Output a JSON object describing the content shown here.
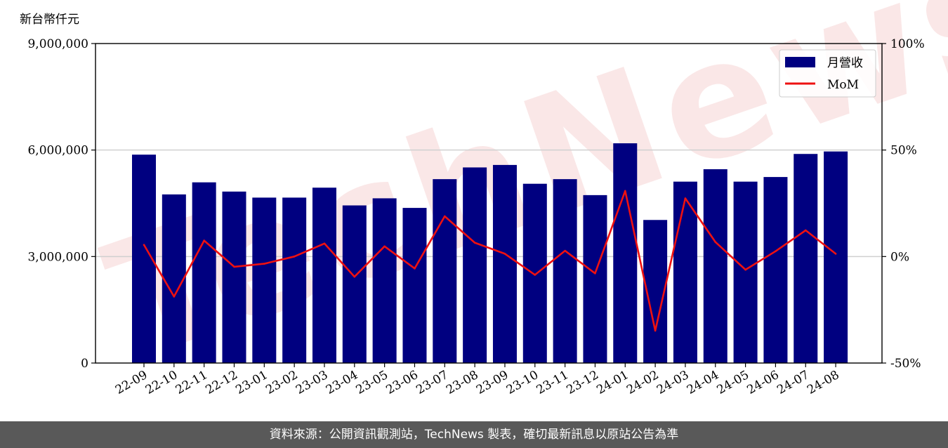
{
  "chart_data": {
    "type": "bar",
    "unit_label": "新台幣仟元",
    "categories": [
      "22-09",
      "22-10",
      "22-11",
      "22-12",
      "23-01",
      "23-02",
      "23-03",
      "23-04",
      "23-05",
      "23-06",
      "23-07",
      "23-08",
      "23-09",
      "23-10",
      "23-11",
      "23-12",
      "24-01",
      "24-02",
      "24-03",
      "24-04",
      "24-05",
      "24-06",
      "24-07",
      "24-08"
    ],
    "series": [
      {
        "name": "月營收",
        "type": "bar",
        "axis": "left",
        "color": "#000080",
        "values": [
          5870000,
          4750000,
          5090000,
          4830000,
          4660000,
          4660000,
          4940000,
          4440000,
          4640000,
          4370000,
          5180000,
          5510000,
          5580000,
          5050000,
          5180000,
          4730000,
          6190000,
          4030000,
          5110000,
          5460000,
          5110000,
          5240000,
          5890000,
          5960000
        ]
      },
      {
        "name": "MoM",
        "type": "line",
        "axis": "right",
        "color": "#ee1111",
        "values": [
          5.5,
          -18.8,
          7.5,
          -4.8,
          -3.4,
          0,
          6.1,
          -9.5,
          4.8,
          -5.6,
          18.9,
          6.5,
          1.3,
          -8.6,
          2.7,
          -7.9,
          30.8,
          -34.8,
          27.3,
          6.8,
          -6.2,
          2.5,
          12.3,
          1.3
        ]
      }
    ],
    "y_left": {
      "ylim": [
        0,
        9000000
      ],
      "ticks": [
        "0",
        "3,000,000",
        "6,000,000",
        "9,000,000"
      ]
    },
    "y_right": {
      "ylim": [
        -50,
        100
      ],
      "ticks": [
        "-50%",
        "0%",
        "50%",
        "100%"
      ]
    },
    "grid": "horizontal",
    "legend": "top-right",
    "footer": "資料來源：公開資訊觀測站，TechNews 製表，確切最新訊息以原站公告為準",
    "watermark": "TechNews"
  }
}
